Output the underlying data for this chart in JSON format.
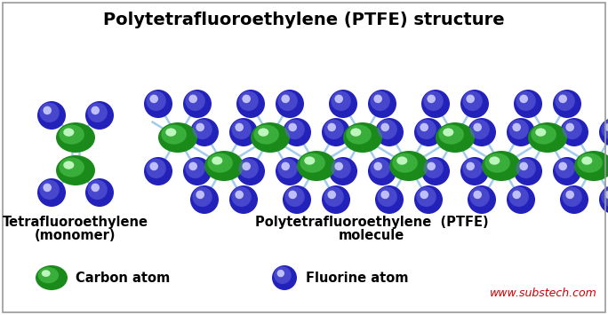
{
  "title": "Polytetrafluoroethylene (PTFE) structure",
  "title_fontsize": 14,
  "bg_color": "#ffffff",
  "border_color": "#999999",
  "bond_color": "#a0ccee",
  "bond_lw": 1.8,
  "carbon_outer": "#1a8a1a",
  "carbon_mid": "#55cc55",
  "carbon_spot": "#ccffcc",
  "fluorine_outer": "#2222bb",
  "fluorine_mid": "#6666dd",
  "fluorine_spot": "#ccccff",
  "monomer_label1": "Tetrafluoroethylene",
  "monomer_label2": "(monomer)",
  "polymer_label1": "Polytetrafluoroethylene  (PTFE)",
  "polymer_label2": "molecule",
  "legend_carbon": "Carbon atom",
  "legend_fluorine": "Fluorine atom",
  "watermark": "www.substech.com",
  "watermark_color": "#cc0000"
}
